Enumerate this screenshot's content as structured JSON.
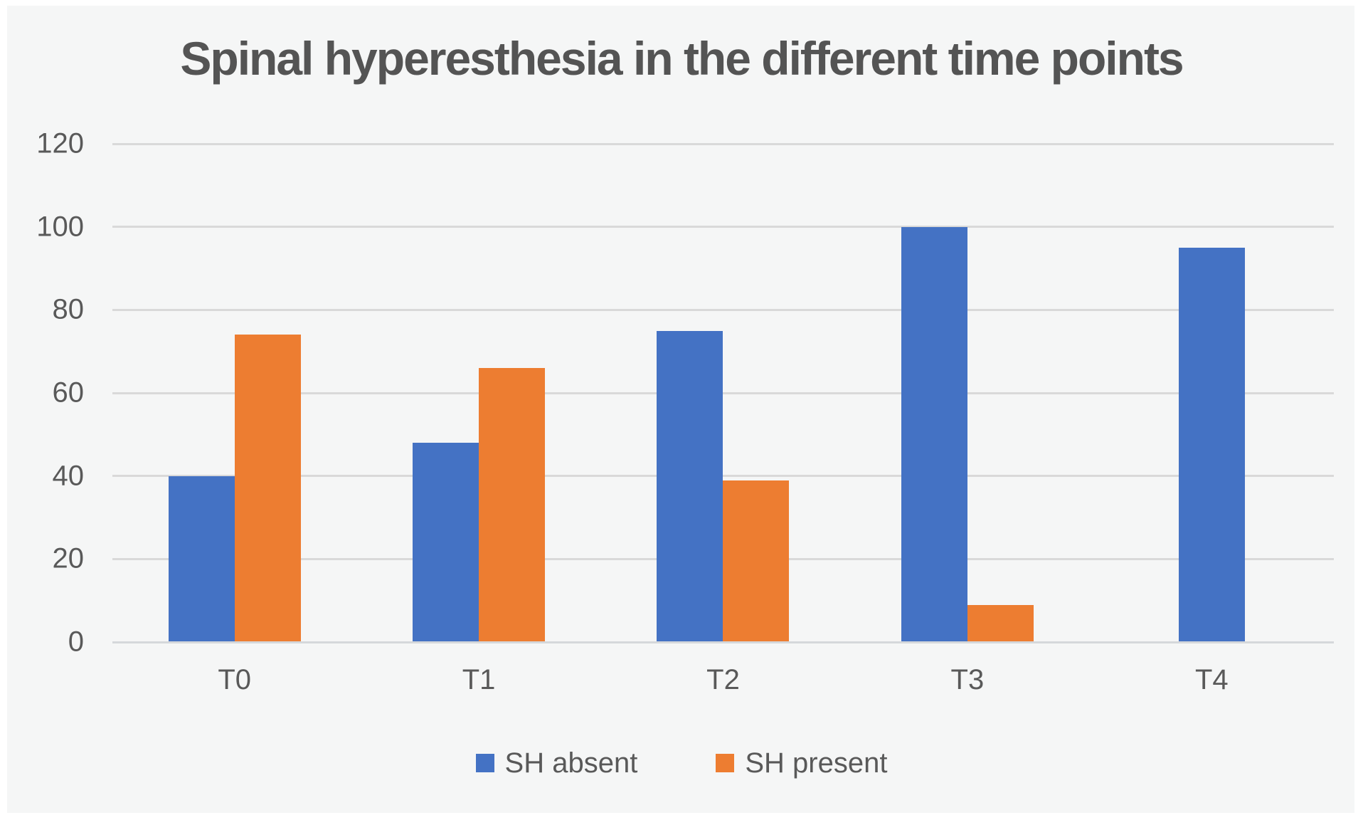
{
  "chart_data": {
    "type": "bar",
    "title": "Spinal hyperesthesia in the different time points",
    "categories": [
      "T0",
      "T1",
      "T2",
      "T3",
      "T4"
    ],
    "series": [
      {
        "name": "SH absent",
        "color": "#4472C4",
        "values": [
          40,
          48,
          75,
          100,
          95
        ]
      },
      {
        "name": "SH present",
        "color": "#ED7D31",
        "values": [
          74,
          66,
          39,
          9,
          null
        ]
      }
    ],
    "xlabel": "",
    "ylabel": "",
    "ylim": [
      0,
      120
    ],
    "yticks": [
      0,
      20,
      40,
      60,
      80,
      100,
      120
    ],
    "grid": true,
    "legend_position": "bottom",
    "colors": {
      "page_margin": "#FFFFFF",
      "background": "#F5F6F6",
      "gridline": "#D9D9D9",
      "axis_line": "#D5D8DB",
      "title_text": "#545454",
      "label_text": "#595959"
    }
  }
}
